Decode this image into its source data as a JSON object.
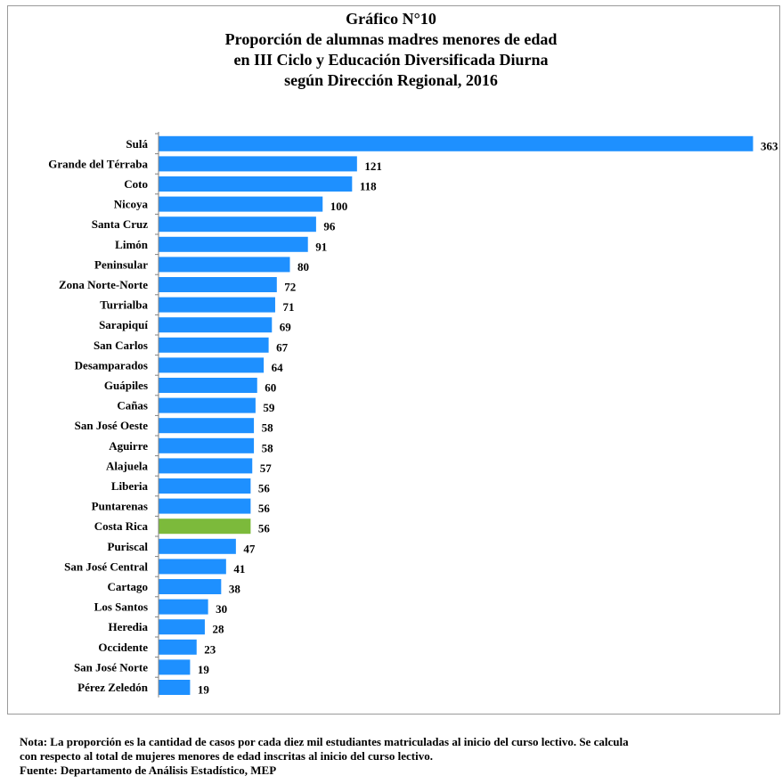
{
  "titles": [
    "Gráfico N°10",
    "Proporción de alumnas madres menores de edad",
    "en III  Ciclo y Educación Diversificada Diurna",
    "según Dirección Regional, 2016"
  ],
  "chart_data": {
    "type": "bar",
    "orientation": "horizontal",
    "title": "Gráfico N°10 Proporción de alumnas madres menores de edad en III  Ciclo y Educación Diversificada Diurna según Dirección Regional, 2016",
    "categories": [
      "Sulá",
      "Grande del Térraba",
      "Coto",
      "Nicoya",
      "Santa Cruz",
      "Limón",
      "Peninsular",
      "Zona Norte-Norte",
      "Turrialba",
      "Sarapiquí",
      "San Carlos",
      "Desamparados",
      "Guápiles",
      "Cañas",
      "San José Oeste",
      "Aguirre",
      "Alajuela",
      "Liberia",
      "Puntarenas",
      "Costa Rica",
      "Puriscal",
      "San José Central",
      "Cartago",
      "Los Santos",
      "Heredia",
      "Occidente",
      "San José Norte",
      "Pérez Zeledón"
    ],
    "values": [
      363,
      121,
      118,
      100,
      96,
      91,
      80,
      72,
      71,
      69,
      67,
      64,
      60,
      59,
      58,
      58,
      57,
      56,
      56,
      56,
      47,
      41,
      38,
      30,
      28,
      23,
      19,
      19
    ],
    "highlight": "Costa Rica",
    "colors": {
      "bar": "#1e90ff",
      "highlight": "#7cba3b",
      "axis": "#808080"
    },
    "grid": false,
    "legend": "none"
  },
  "notes": {
    "line1": "Nota: La proporción  es la cantidad de casos por cada diez mil estudiantes matriculadas al inicio del curso lectivo. Se calcula",
    "line2": "con respecto al total de mujeres menores de edad inscritas al inicio del curso lectivo.",
    "source": "Fuente: Departamento de Análisis Estadístico, MEP"
  }
}
